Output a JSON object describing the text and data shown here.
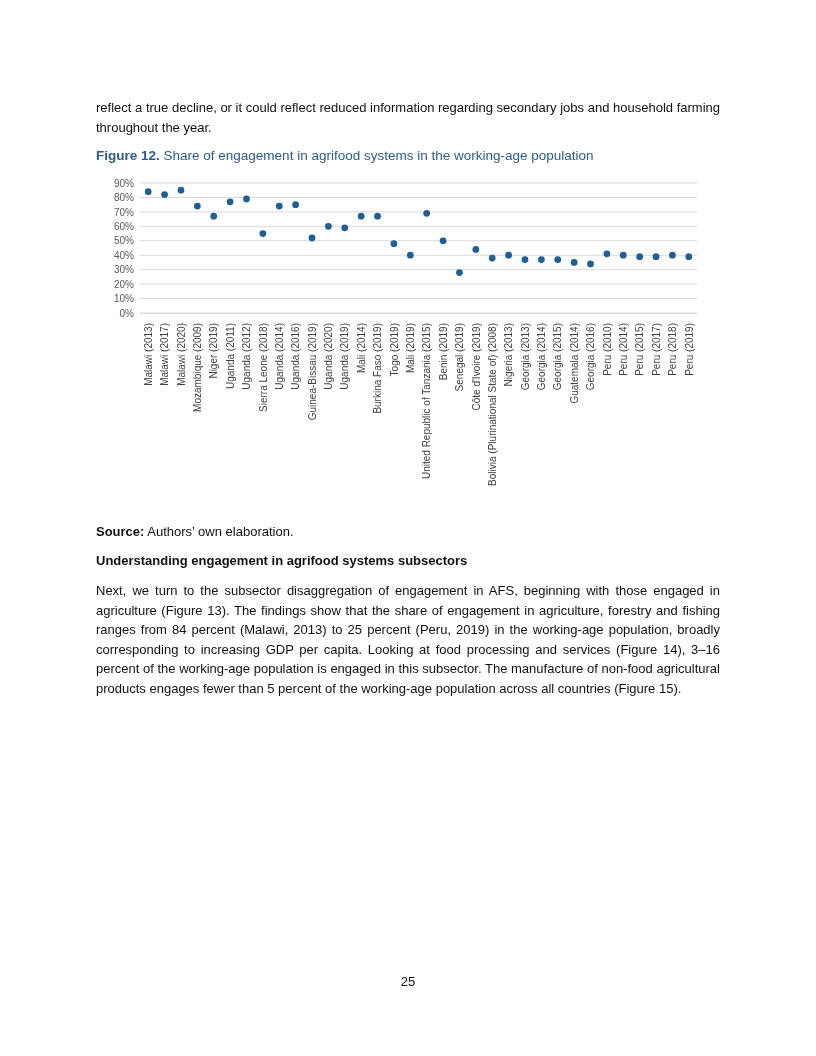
{
  "chart_data": {
    "type": "scatter",
    "title": "Figure 12. Share of engagement in agrifood systems in the working-age population",
    "categories": [
      "Malawi (2013)",
      "Malawi (2017)",
      "Malawi (2020)",
      "Mozambique (2009)",
      "Niger (2019)",
      "Uganda (2011)",
      "Uganda (2012)",
      "Sierra Leone (2018)",
      "Uganda (2014)",
      "Uganda (2016)",
      "Guinea-Bissau (2019)",
      "Uganda (2020)",
      "Uganda (2019)",
      "Mali (2014)",
      "Burkina Faso (2019)",
      "Togo (2019)",
      "Mali (2019)",
      "United Republic of Tanzania (2015)",
      "Benin (2019)",
      "Senegal (2019)",
      "Côte d'Ivoire (2019)",
      "Bolivia (Plurinational State of) (2008)",
      "Nigeria (2013)",
      "Georgia (2013)",
      "Georgia (2014)",
      "Georgia (2015)",
      "Guatemala (2014)",
      "Georgia (2016)",
      "Peru (2010)",
      "Peru (2014)",
      "Peru (2015)",
      "Peru (2017)",
      "Peru (2018)",
      "Peru (2019)"
    ],
    "series": [
      {
        "color": "#1f5f95",
        "values": [
          84,
          82,
          85,
          74,
          67,
          77,
          79,
          55,
          74,
          75,
          52,
          60,
          59,
          67,
          67,
          48,
          40,
          69,
          50,
          28,
          44,
          38,
          40,
          37,
          37,
          37,
          35,
          34,
          41,
          40,
          39,
          39,
          40,
          39
        ]
      }
    ],
    "ylim": [
      0,
      90
    ],
    "yticks": [
      {
        "value": 0,
        "label": "0%"
      },
      {
        "value": 10,
        "label": "10%"
      },
      {
        "value": 20,
        "label": "20%"
      },
      {
        "value": 30,
        "label": "30%"
      },
      {
        "value": 40,
        "label": "40%"
      },
      {
        "value": 50,
        "label": "50%"
      },
      {
        "value": 60,
        "label": "60%"
      },
      {
        "value": 70,
        "label": "70%"
      },
      {
        "value": 80,
        "label": "80%"
      },
      {
        "value": 90,
        "label": "90%"
      }
    ],
    "grid": "y",
    "marker": "circle",
    "annotations": [
      "reflect a true decline, or it could reflect reduced information regarding secondary jobs and household farming throughout the year.",
      "Source: Authors’ own elaboration.",
      "Understanding engagement in agrifood systems subsectors",
      "Next, we turn to the subsector disaggregation of engagement in AFS, beginning with those engaged in agriculture (Figure 13). The findings show that the share of engagement in agriculture, forestry and fishing ranges from 84 percent (Malawi, 2013) to 25 percent (Peru, 2019) in the working-age population, broadly corresponding to increasing GDP per capita. Looking at food processing and services (Figure 14), 3–16 percent of the working-age population is engaged in this subsector. The manufacture of non-food agricultural products engages fewer than 5 percent of the working-age population across all countries (Figure 15).",
      "25"
    ]
  }
}
